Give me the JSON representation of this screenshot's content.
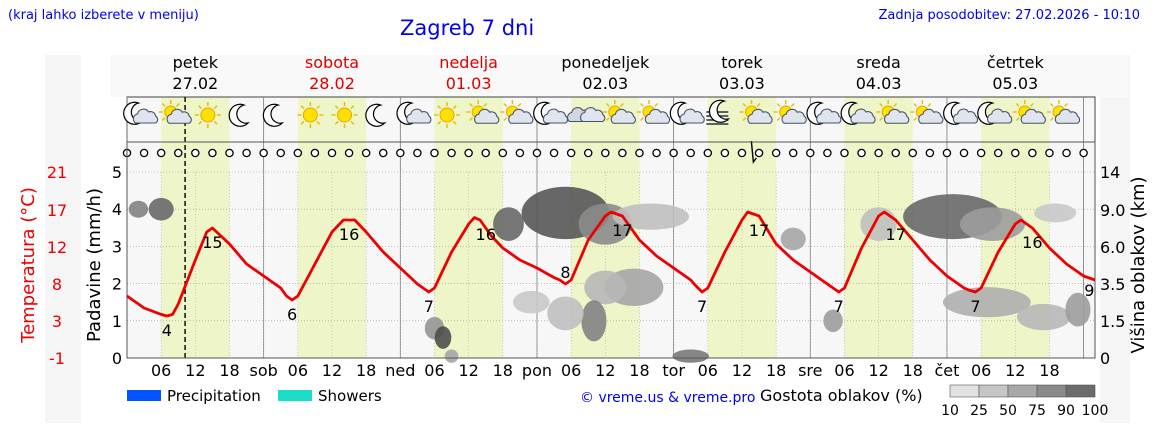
{
  "header": {
    "note": "(kraj lahko izberete v meniju)",
    "title": "Zagreb 7 dni",
    "updated": "Zadnja posodobitev: 27.02.2026 - 10:10"
  },
  "colors": {
    "temperature": "#ee0000",
    "day_band": "#eef5c8",
    "precipitation": "#0055ff",
    "showers": "#1adcc8",
    "weekend_label": "#dd0000",
    "weekday_label": "#000000"
  },
  "days": [
    {
      "name": "petek",
      "date": "27.02",
      "weekend": false,
      "icons": [
        "moon-cloud-icon",
        "sun-cloud-icon",
        "sun-icon",
        "moon-icon"
      ]
    },
    {
      "name": "sobota",
      "date": "28.02",
      "weekend": true,
      "icons": [
        "moon-icon",
        "sun-icon",
        "sun-icon",
        "moon-icon"
      ]
    },
    {
      "name": "nedelja",
      "date": "01.03",
      "weekend": true,
      "icons": [
        "moon-cloud-icon",
        "sun-icon",
        "sun-cloud-icon",
        "sun-cloud-icon"
      ]
    },
    {
      "name": "ponedeljek",
      "date": "02.03",
      "weekend": false,
      "icons": [
        "moon-cloud-icon",
        "cloud-icon",
        "sun-cloud-icon",
        "sun-cloud-icon"
      ]
    },
    {
      "name": "torek",
      "date": "03.03",
      "weekend": false,
      "icons": [
        "moon-cloud-icon",
        "fog-icon",
        "sun-cloud-icon",
        "sun-cloud-icon"
      ]
    },
    {
      "name": "sreda",
      "date": "04.03",
      "weekend": false,
      "icons": [
        "moon-cloud-icon",
        "moon-cloud-icon",
        "sun-cloud-icon",
        "sun-cloud-icon"
      ]
    },
    {
      "name": "četrtek",
      "date": "05.03",
      "weekend": false,
      "icons": [
        "moon-cloud-icon",
        "moon-cloud-icon",
        "sun-cloud-icon",
        "sun-cloud-icon"
      ]
    }
  ],
  "chart_data": {
    "type": "line",
    "x_unit": "hours from 27.02 00:00",
    "xlim": [
      0,
      170
    ],
    "now_hour": 10.2,
    "x_ticks": [
      {
        "h": 6,
        "label": "06"
      },
      {
        "h": 12,
        "label": "12"
      },
      {
        "h": 18,
        "label": "18"
      },
      {
        "h": 24,
        "label": "sob"
      },
      {
        "h": 30,
        "label": "06"
      },
      {
        "h": 36,
        "label": "12"
      },
      {
        "h": 42,
        "label": "18"
      },
      {
        "h": 48,
        "label": "ned"
      },
      {
        "h": 54,
        "label": "06"
      },
      {
        "h": 60,
        "label": "12"
      },
      {
        "h": 66,
        "label": "18"
      },
      {
        "h": 72,
        "label": "pon"
      },
      {
        "h": 78,
        "label": "06"
      },
      {
        "h": 84,
        "label": "12"
      },
      {
        "h": 90,
        "label": "18"
      },
      {
        "h": 96,
        "label": "tor"
      },
      {
        "h": 102,
        "label": "06"
      },
      {
        "h": 108,
        "label": "12"
      },
      {
        "h": 114,
        "label": "18"
      },
      {
        "h": 120,
        "label": "sre"
      },
      {
        "h": 126,
        "label": "06"
      },
      {
        "h": 132,
        "label": "12"
      },
      {
        "h": 138,
        "label": "18"
      },
      {
        "h": 144,
        "label": "čet"
      },
      {
        "h": 150,
        "label": "06"
      },
      {
        "h": 156,
        "label": "12"
      },
      {
        "h": 162,
        "label": "18"
      }
    ],
    "precip_axis": {
      "label": "Padavine (mm/h)",
      "ylim": [
        0,
        5
      ],
      "ticks": [
        0,
        1,
        2,
        3,
        4,
        5
      ]
    },
    "temp_axis": {
      "label": "Temperatura (°C)",
      "ticks": [
        "21",
        "17",
        "12",
        "8",
        "3",
        "-1"
      ]
    },
    "cloud_axis": {
      "label": "Višina oblakov (km)",
      "ticks": [
        "14",
        "9.0",
        "6.0",
        "3.5",
        "1.5",
        "0"
      ]
    },
    "temp_series": {
      "x": [
        0,
        3,
        6,
        7,
        8,
        9,
        12,
        14,
        15,
        18,
        21,
        24,
        27,
        28,
        29,
        30,
        33,
        36,
        38,
        40,
        42,
        45,
        48,
        51,
        52,
        53,
        54,
        57,
        60,
        61,
        62,
        64,
        66,
        69,
        72,
        75,
        76,
        77,
        78,
        81,
        84,
        85,
        87,
        90,
        93,
        96,
        99,
        100,
        101,
        102,
        105,
        108,
        109,
        111,
        114,
        117,
        120,
        123,
        124,
        125,
        126,
        129,
        132,
        133,
        135,
        138,
        141,
        144,
        147,
        148,
        149,
        150,
        153,
        156,
        157,
        159,
        162,
        165,
        168,
        170
      ],
      "y": [
        6.5,
        5.0,
        4.2,
        4.0,
        4.2,
        5.5,
        11.0,
        14.5,
        15.0,
        13.0,
        10.5,
        9.0,
        7.5,
        6.5,
        6.0,
        6.5,
        10.5,
        14.5,
        16.0,
        16.0,
        14.5,
        12.0,
        10.0,
        8.0,
        7.5,
        7.0,
        7.5,
        12.0,
        15.5,
        16.3,
        16.0,
        14.0,
        12.5,
        11.0,
        10.0,
        8.8,
        8.5,
        8.0,
        8.5,
        13.5,
        16.5,
        17.0,
        16.5,
        13.5,
        11.5,
        10.0,
        8.5,
        7.7,
        7.0,
        7.5,
        12.0,
        16.0,
        17.0,
        16.5,
        13.0,
        11.0,
        9.5,
        8.0,
        7.5,
        7.0,
        7.5,
        12.5,
        16.5,
        17.0,
        16.0,
        13.5,
        11.0,
        9.0,
        7.5,
        7.2,
        7.0,
        7.5,
        12.0,
        15.5,
        16.0,
        15.0,
        12.5,
        10.5,
        9.0,
        8.5
      ]
    },
    "temp_labels": [
      {
        "h": 7,
        "value": "4",
        "pos": "below"
      },
      {
        "h": 15,
        "value": "15",
        "pos": "below"
      },
      {
        "h": 29,
        "value": "6",
        "pos": "below"
      },
      {
        "h": 39,
        "value": "16",
        "pos": "below"
      },
      {
        "h": 53,
        "value": "7",
        "pos": "below"
      },
      {
        "h": 63,
        "value": "16",
        "pos": "below"
      },
      {
        "h": 77,
        "value": "8",
        "pos": "above"
      },
      {
        "h": 87,
        "value": "17",
        "pos": "below"
      },
      {
        "h": 101,
        "value": "7",
        "pos": "below"
      },
      {
        "h": 111,
        "value": "17",
        "pos": "below"
      },
      {
        "h": 125,
        "value": "7",
        "pos": "below"
      },
      {
        "h": 135,
        "value": "17",
        "pos": "below"
      },
      {
        "h": 149,
        "value": "7",
        "pos": "below"
      },
      {
        "h": 159,
        "value": "16",
        "pos": "below"
      },
      {
        "h": 169,
        "value": "9",
        "pos": "below"
      }
    ],
    "cloud_blobs": [
      {
        "h": 2,
        "w": 2,
        "y": 4.0,
        "hgt": 0.35,
        "density": 60
      },
      {
        "h": 6,
        "w": 3,
        "y": 4.0,
        "hgt": 0.5,
        "density": 75
      },
      {
        "h": 54,
        "w": 2,
        "y": 0.8,
        "hgt": 0.5,
        "density": 50
      },
      {
        "h": 55.5,
        "w": 1.5,
        "y": 0.55,
        "hgt": 0.5,
        "density": 90
      },
      {
        "h": 57,
        "w": 1,
        "y": 0.05,
        "hgt": 0.25,
        "density": 40
      },
      {
        "h": 67,
        "w": 4,
        "y": 3.6,
        "hgt": 0.8,
        "density": 75
      },
      {
        "h": 77,
        "w": 14,
        "y": 3.9,
        "hgt": 1.3,
        "density": 85
      },
      {
        "h": 84,
        "w": 8,
        "y": 3.6,
        "hgt": 1.0,
        "density": 55
      },
      {
        "h": 92,
        "w": 12,
        "y": 3.8,
        "hgt": 0.6,
        "density": 25
      },
      {
        "h": 89,
        "w": 9,
        "y": 1.9,
        "hgt": 0.9,
        "density": 40
      },
      {
        "h": 84,
        "w": 6,
        "y": 1.9,
        "hgt": 0.8,
        "density": 30
      },
      {
        "h": 82,
        "w": 3,
        "y": 1.0,
        "hgt": 1.0,
        "density": 60
      },
      {
        "h": 77,
        "w": 5,
        "y": 1.2,
        "hgt": 0.8,
        "density": 25
      },
      {
        "h": 71,
        "w": 5,
        "y": 1.5,
        "hgt": 0.5,
        "density": 20
      },
      {
        "h": 99,
        "w": 5,
        "y": 0.05,
        "hgt": 0.25,
        "density": 65
      },
      {
        "h": 117,
        "w": 3,
        "y": 3.2,
        "hgt": 0.5,
        "density": 40
      },
      {
        "h": 124,
        "w": 2,
        "y": 1.0,
        "hgt": 0.5,
        "density": 45
      },
      {
        "h": 132,
        "w": 5,
        "y": 3.6,
        "hgt": 0.8,
        "density": 25
      },
      {
        "h": 145,
        "w": 16,
        "y": 3.8,
        "hgt": 1.1,
        "density": 75
      },
      {
        "h": 152,
        "w": 10,
        "y": 3.6,
        "hgt": 0.8,
        "density": 45
      },
      {
        "h": 163,
        "w": 6,
        "y": 3.9,
        "hgt": 0.4,
        "density": 20
      },
      {
        "h": 151,
        "w": 14,
        "y": 1.5,
        "hgt": 0.7,
        "density": 35
      },
      {
        "h": 161,
        "w": 8,
        "y": 1.1,
        "hgt": 0.6,
        "density": 30
      },
      {
        "h": 167,
        "w": 3,
        "y": 1.3,
        "hgt": 0.8,
        "density": 45
      }
    ],
    "legend": {
      "precipitation": "Precipitation",
      "showers": "Showers",
      "credit": "© vreme.us & vreme.pro",
      "density_title": "Gostota oblakov (%)",
      "density_levels": [
        "10",
        "25",
        "50",
        "75",
        "90",
        "100"
      ]
    }
  }
}
